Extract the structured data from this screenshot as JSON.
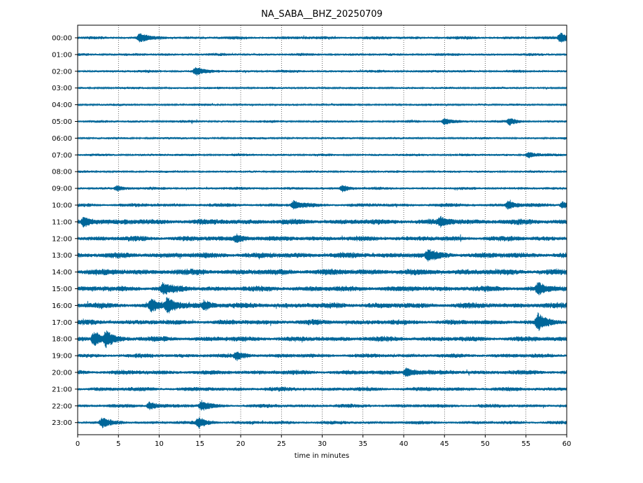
{
  "chart_data": {
    "type": "line",
    "title": "NA_SABA__BHZ_20250709",
    "xlabel": "time in minutes",
    "ylabel": "",
    "xlim": [
      0,
      60
    ],
    "x_ticks": [
      0,
      5,
      10,
      15,
      20,
      25,
      30,
      35,
      40,
      45,
      50,
      55,
      60
    ],
    "y_tick_labels": [
      "00:00",
      "01:00",
      "02:00",
      "03:00",
      "04:00",
      "05:00",
      "06:00",
      "07:00",
      "08:00",
      "09:00",
      "10:00",
      "11:00",
      "12:00",
      "13:00",
      "14:00",
      "15:00",
      "16:00",
      "17:00",
      "18:00",
      "19:00",
      "20:00",
      "21:00",
      "22:00",
      "23:00"
    ],
    "grid": "vertical dotted",
    "line_color": "#006699",
    "series_noise_level": [
      0.35,
      0.3,
      0.3,
      0.25,
      0.25,
      0.28,
      0.25,
      0.28,
      0.25,
      0.3,
      0.4,
      0.6,
      0.55,
      0.6,
      0.65,
      0.6,
      0.6,
      0.55,
      0.55,
      0.45,
      0.5,
      0.45,
      0.4,
      0.38
    ],
    "events": [
      {
        "row": 0,
        "minute": 7.6,
        "amplitude": 0.8
      },
      {
        "row": 0,
        "minute": 59.2,
        "amplitude": 0.9
      },
      {
        "row": 2,
        "minute": 14.5,
        "amplitude": 0.7
      },
      {
        "row": 5,
        "minute": 45.0,
        "amplitude": 0.6
      },
      {
        "row": 5,
        "minute": 53.0,
        "amplitude": 0.6
      },
      {
        "row": 7,
        "minute": 55.3,
        "amplitude": 0.6
      },
      {
        "row": 9,
        "minute": 4.8,
        "amplitude": 0.5
      },
      {
        "row": 9,
        "minute": 32.5,
        "amplitude": 0.6
      },
      {
        "row": 10,
        "minute": 26.5,
        "amplitude": 0.7
      },
      {
        "row": 10,
        "minute": 52.8,
        "amplitude": 0.7
      },
      {
        "row": 10,
        "minute": 59.5,
        "amplitude": 0.6
      },
      {
        "row": 11,
        "minute": 0.8,
        "amplitude": 0.9
      },
      {
        "row": 11,
        "minute": 44.5,
        "amplitude": 0.8
      },
      {
        "row": 12,
        "minute": 19.5,
        "amplitude": 0.7
      },
      {
        "row": 13,
        "minute": 43.0,
        "amplitude": 0.8
      },
      {
        "row": 15,
        "minute": 10.5,
        "amplitude": 0.9
      },
      {
        "row": 15,
        "minute": 56.5,
        "amplitude": 1.0
      },
      {
        "row": 16,
        "minute": 9.0,
        "amplitude": 1.0
      },
      {
        "row": 16,
        "minute": 11.0,
        "amplitude": 1.4
      },
      {
        "row": 16,
        "minute": 15.5,
        "amplitude": 0.8
      },
      {
        "row": 17,
        "minute": 56.5,
        "amplitude": 1.4
      },
      {
        "row": 18,
        "minute": 2.0,
        "amplitude": 1.4
      },
      {
        "row": 18,
        "minute": 3.5,
        "amplitude": 1.2
      },
      {
        "row": 19,
        "minute": 19.5,
        "amplitude": 0.7
      },
      {
        "row": 20,
        "minute": 40.3,
        "amplitude": 0.9
      },
      {
        "row": 22,
        "minute": 8.8,
        "amplitude": 0.7
      },
      {
        "row": 22,
        "minute": 15.2,
        "amplitude": 0.8
      },
      {
        "row": 23,
        "minute": 3.0,
        "amplitude": 0.8
      },
      {
        "row": 23,
        "minute": 14.8,
        "amplitude": 0.9
      }
    ]
  }
}
